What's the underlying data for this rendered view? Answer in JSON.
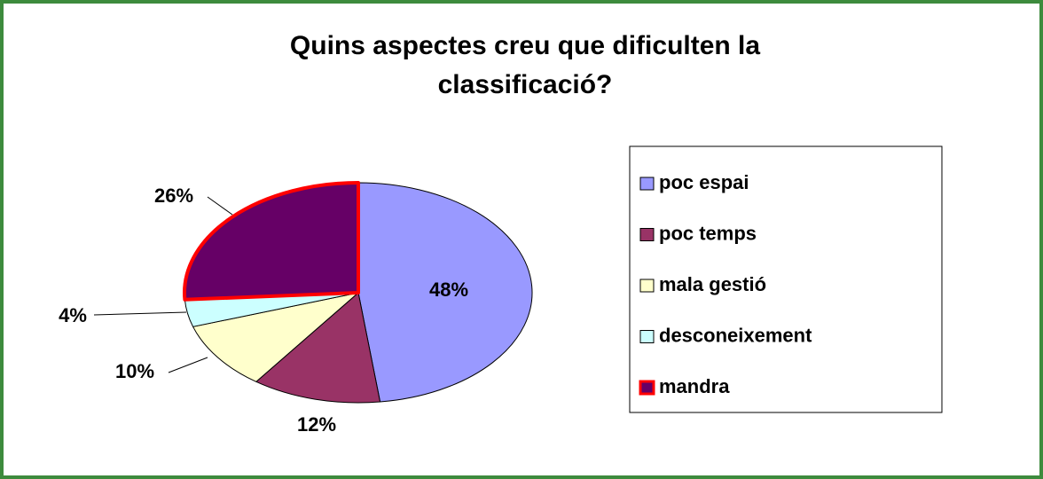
{
  "chart_data": {
    "type": "pie",
    "title": "Quins aspectes creu que dificulten la classificació?",
    "categories": [
      "poc espai",
      "poc temps",
      "mala gestió",
      "desconeixement",
      "mandra"
    ],
    "values": [
      48,
      12,
      10,
      4,
      26
    ],
    "value_labels": [
      "48%",
      "12%",
      "10%",
      "4%",
      "26%"
    ],
    "colors": [
      "#9999ff",
      "#993366",
      "#ffffcc",
      "#ccffff",
      "#660066"
    ],
    "legend": "right"
  }
}
